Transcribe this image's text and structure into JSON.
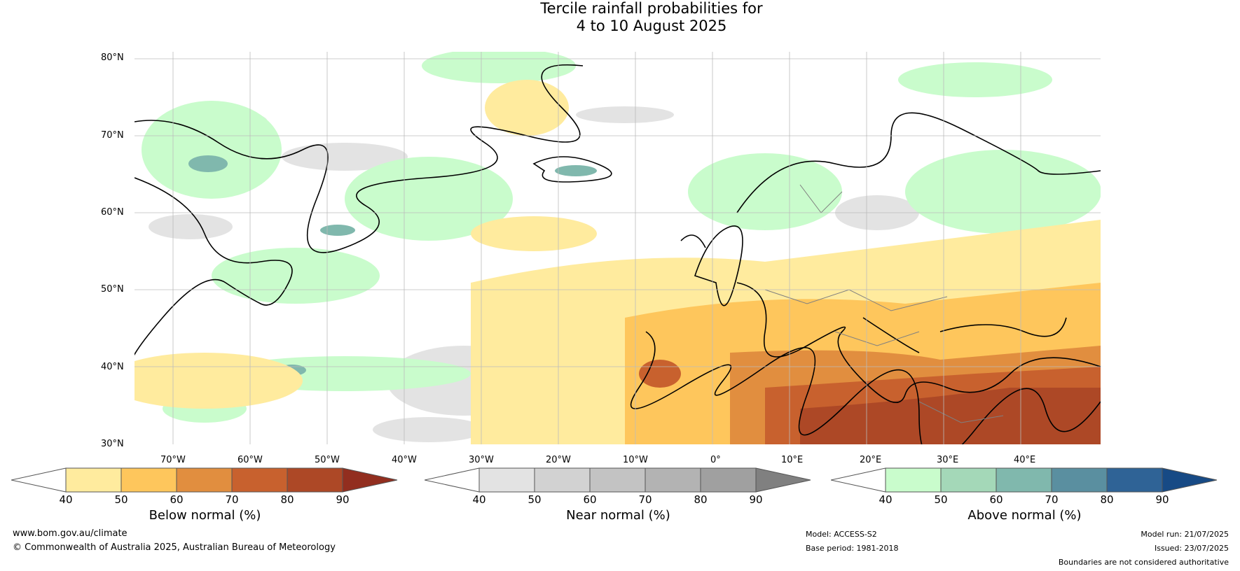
{
  "title": {
    "line1": "Tercile rainfall probabilities for",
    "line2": "4 to 10 August 2025"
  },
  "map": {
    "lat_labels": [
      "80°N",
      "70°N",
      "60°N",
      "50°N",
      "40°N",
      "30°N"
    ],
    "lon_labels": [
      "70°W",
      "60°W",
      "50°W",
      "40°W",
      "30°W",
      "20°W",
      "10°W",
      "0°",
      "10°E",
      "20°E",
      "30°E",
      "40°E"
    ]
  },
  "colorbars": {
    "ticks": [
      "40",
      "50",
      "60",
      "70",
      "80",
      "90"
    ],
    "below": {
      "label": "Below normal (%)",
      "colors": [
        "#ffeb9e",
        "#fec65c",
        "#e18e3f",
        "#c8612e",
        "#ad4826",
        "#922e1f"
      ]
    },
    "near": {
      "label": "Near normal (%)",
      "colors": [
        "#e3e3e3",
        "#d2d2d2",
        "#c3c3c3",
        "#b3b3b3",
        "#a0a0a0",
        "#808080"
      ]
    },
    "above": {
      "label": "Above normal (%)",
      "colors": [
        "#c9fccc",
        "#a4d8b8",
        "#80b8ad",
        "#5a8fa0",
        "#2f6396",
        "#174a85"
      ]
    }
  },
  "footer": {
    "url": "www.bom.gov.au/climate",
    "copyright": "© Commonwealth of Australia 2025, Australian Bureau of Meteorology",
    "model": "Model: ACCESS-S2",
    "base_period": "Base period: 1981-2018",
    "model_run": "Model run: 21/07/2025",
    "issued": "Issued: 23/07/2025",
    "disclaimer": "Boundaries are not considered authoritative"
  }
}
